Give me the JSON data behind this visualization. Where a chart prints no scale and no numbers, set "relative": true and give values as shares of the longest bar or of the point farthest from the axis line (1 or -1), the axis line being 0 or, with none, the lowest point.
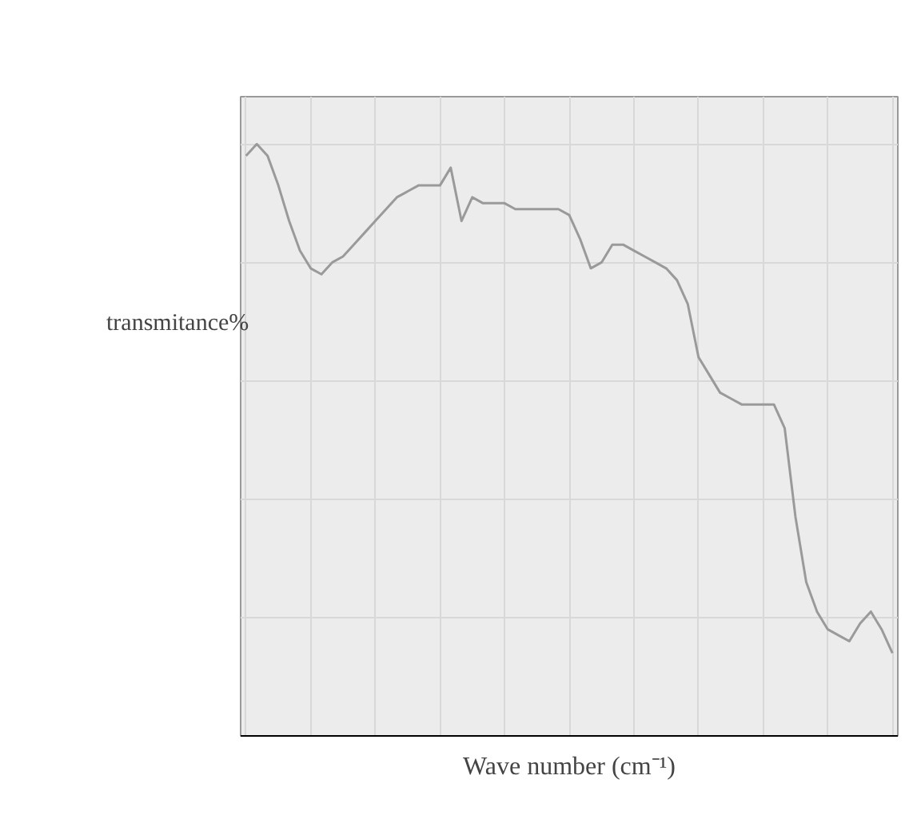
{
  "chart_data": {
    "type": "line",
    "relative": true,
    "xlabel": "Wave number (cm⁻¹)",
    "ylabel": "transmitance%",
    "grid": true,
    "categories": [
      null,
      null,
      null,
      null,
      null,
      null,
      null,
      null,
      null,
      null,
      null,
      null,
      null,
      null,
      null,
      null,
      null,
      null,
      null,
      null,
      null,
      null,
      null,
      null,
      null,
      null,
      null,
      null,
      null,
      null,
      null,
      null,
      null,
      null,
      null,
      null,
      null,
      null,
      null,
      null,
      null,
      null,
      null,
      null,
      null,
      null,
      null,
      null,
      null,
      null,
      null,
      null,
      null,
      null,
      null,
      null,
      null,
      null,
      null,
      null,
      null
    ],
    "series": [
      {
        "color": "#9a9a9a",
        "values": [
          0.98,
          1.0,
          0.98,
          0.93,
          0.87,
          0.82,
          0.79,
          0.78,
          0.8,
          0.81,
          0.83,
          0.85,
          0.87,
          0.89,
          0.91,
          0.92,
          0.93,
          0.93,
          0.93,
          0.96,
          0.87,
          0.91,
          0.9,
          0.9,
          0.9,
          0.89,
          0.89,
          0.89,
          0.89,
          0.89,
          0.88,
          0.84,
          0.79,
          0.8,
          0.83,
          0.83,
          0.82,
          0.81,
          0.8,
          0.79,
          0.77,
          0.73,
          0.64,
          0.61,
          0.58,
          0.57,
          0.56,
          0.56,
          0.56,
          0.56,
          0.52,
          0.37,
          0.26,
          0.21,
          0.18,
          0.17,
          0.16,
          0.19,
          0.21,
          0.18,
          0.14
        ]
      }
    ]
  }
}
